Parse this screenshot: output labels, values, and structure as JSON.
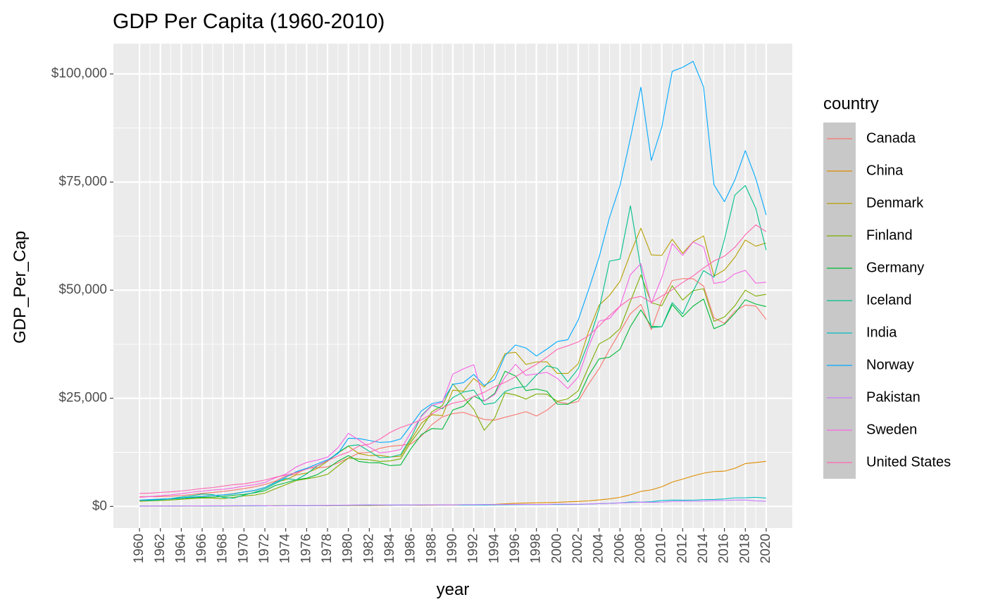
{
  "chart_data": {
    "type": "line",
    "title": "GDP Per Capita (1960-2010)",
    "xlabel": "year",
    "ylabel": "GDP_Per_Cap",
    "xlim": [
      1957.5,
      2022.5
    ],
    "ylim": [
      -5000,
      107000
    ],
    "x_ticks": [
      1960,
      1962,
      1964,
      1966,
      1968,
      1970,
      1972,
      1974,
      1976,
      1978,
      1980,
      1982,
      1984,
      1986,
      1988,
      1990,
      1992,
      1994,
      1996,
      1998,
      2000,
      2002,
      2004,
      2006,
      2008,
      2010,
      2012,
      2014,
      2016,
      2018,
      2020
    ],
    "y_ticks": [
      0,
      25000,
      50000,
      75000,
      100000
    ],
    "y_tick_labels": [
      "$0",
      "$25,000",
      "$50,000",
      "$75,000",
      "$100,000"
    ],
    "grid": true,
    "legend_title": "country",
    "legend_position": "right",
    "x": [
      1960,
      1961,
      1962,
      1963,
      1964,
      1965,
      1966,
      1967,
      1968,
      1969,
      1970,
      1971,
      1972,
      1973,
      1974,
      1975,
      1976,
      1977,
      1978,
      1979,
      1980,
      1981,
      1982,
      1983,
      1984,
      1985,
      1986,
      1987,
      1988,
      1989,
      1990,
      1991,
      1992,
      1993,
      1994,
      1995,
      1996,
      1997,
      1998,
      1999,
      2000,
      2001,
      2002,
      2003,
      2004,
      2005,
      2006,
      2007,
      2008,
      2009,
      2010,
      2011,
      2012,
      2013,
      2014,
      2015,
      2016,
      2017,
      2018,
      2019,
      2020
    ],
    "series": [
      {
        "name": "Canada",
        "color": "#F8766D",
        "values": [
          2260,
          2270,
          2270,
          2370,
          2530,
          2750,
          3030,
          3210,
          3460,
          3760,
          4120,
          4520,
          5080,
          5840,
          7000,
          7530,
          8820,
          8930,
          9150,
          10060,
          11170,
          12340,
          12480,
          13430,
          13890,
          14120,
          14460,
          16300,
          18940,
          20720,
          21440,
          21760,
          20920,
          20120,
          19940,
          20610,
          21230,
          21900,
          20900,
          22240,
          24190,
          23740,
          24240,
          28300,
          31830,
          36270,
          40390,
          44540,
          46710,
          40880,
          47560,
          52220,
          52670,
          52640,
          50960,
          43600,
          42320,
          45130,
          46550,
          46330,
          43260
        ]
      },
      {
        "name": "China",
        "color": "#DE8C00",
        "values": [
          90,
          75,
          70,
          74,
          85,
          98,
          104,
          97,
          91,
          100,
          113,
          118,
          132,
          157,
          160,
          178,
          165,
          185,
          156,
          183,
          195,
          197,
          203,
          225,
          250,
          294,
          281,
          252,
          284,
          311,
          317,
          333,
          366,
          377,
          473,
          610,
          709,
          782,
          829,
          873,
          959,
          1053,
          1149,
          1289,
          1509,
          1753,
          2099,
          2694,
          3468,
          3832,
          4550,
          5618,
          6317,
          7051,
          7679,
          8066,
          8148,
          8817,
          9905,
          10144,
          10409
        ]
      },
      {
        "name": "Denmark",
        "color": "#B79F00",
        "values": [
          1400,
          1540,
          1680,
          1700,
          1940,
          2160,
          2340,
          2530,
          2640,
          2940,
          3340,
          3660,
          4370,
          5650,
          6140,
          7290,
          7710,
          8780,
          10440,
          12330,
          13910,
          12230,
          11750,
          11820,
          11420,
          11600,
          15480,
          19260,
          21200,
          20980,
          26890,
          26630,
          29600,
          27600,
          30520,
          35350,
          35650,
          32830,
          33400,
          33440,
          30740,
          30750,
          32970,
          40460,
          46510,
          48800,
          52030,
          58490,
          64320,
          58160,
          58040,
          61750,
          58510,
          61190,
          62550,
          53250,
          54660,
          57610,
          61590,
          60170,
          60910
        ]
      },
      {
        "name": "Finland",
        "color": "#7CAE00",
        "values": [
          1180,
          1300,
          1380,
          1470,
          1650,
          1830,
          1950,
          1930,
          1790,
          2120,
          2440,
          2610,
          3080,
          4070,
          5020,
          5970,
          6380,
          6780,
          7410,
          9330,
          11190,
          10950,
          10780,
          10390,
          10520,
          11010,
          14940,
          18080,
          21910,
          23310,
          28360,
          25290,
          22450,
          17620,
          20420,
          26250,
          25760,
          24820,
          25990,
          25940,
          24300,
          24870,
          26720,
          32240,
          37560,
          38900,
          41110,
          47400,
          53530,
          47110,
          46400,
          51020,
          47710,
          49880,
          50330,
          42800,
          43800,
          46410,
          49990,
          48630,
          49040
        ]
      },
      {
        "name": "Germany",
        "color": "#00BA38",
        "values": [
          1390,
          1520,
          1630,
          1700,
          1860,
          2000,
          2100,
          2150,
          2300,
          2570,
          2780,
          3140,
          3640,
          4830,
          5460,
          6170,
          6520,
          7320,
          8770,
          10450,
          11750,
          10400,
          10110,
          10070,
          9430,
          9600,
          13400,
          16630,
          18010,
          17870,
          22310,
          23130,
          25480,
          24340,
          26110,
          31250,
          30170,
          26780,
          27140,
          26640,
          23640,
          23610,
          25080,
          30270,
          34100,
          34500,
          36320,
          41590,
          45430,
          41650,
          41530,
          46640,
          43860,
          46300,
          47960,
          41100,
          42100,
          44650,
          47790,
          46790,
          46210
        ]
      },
      {
        "name": "Iceland",
        "color": "#00C08B",
        "values": [
          1430,
          1370,
          1520,
          1810,
          2180,
          2460,
          2840,
          2720,
          2090,
          1900,
          2610,
          3250,
          4050,
          5300,
          6470,
          6130,
          7500,
          9340,
          10540,
          12460,
          14000,
          14240,
          12750,
          11280,
          11400,
          11990,
          15970,
          21000,
          23420,
          22570,
          25180,
          26430,
          26900,
          23560,
          23940,
          26560,
          27430,
          27720,
          30360,
          32490,
          31910,
          28810,
          31840,
          38050,
          45550,
          56720,
          57170,
          69500,
          55080,
          41330,
          41550,
          47120,
          44510,
          49780,
          54520,
          53000,
          61700,
          72000,
          74200,
          68900,
          59260
        ]
      },
      {
        "name": "India",
        "color": "#00BFC4",
        "values": [
          82,
          85,
          89,
          101,
          116,
          119,
          90,
          96,
          99,
          107,
          112,
          118,
          123,
          143,
          163,
          158,
          161,
          186,
          206,
          223,
          267,
          271,
          274,
          292,
          277,
          296,
          310,
          340,
          354,
          347,
          368,
          303,
          317,
          301,
          346,
          374,
          400,
          415,
          413,
          441,
          443,
          451,
          470,
          546,
          627,
          714,
          806,
          1028,
          999,
          1101,
          1358,
          1458,
          1444,
          1450,
          1574,
          1606,
          1733,
          1981,
          1997,
          2101,
          1928
        ]
      },
      {
        "name": "Norway",
        "color": "#00A9FF",
        "values": [
          1440,
          1560,
          1680,
          1790,
          1950,
          2150,
          2320,
          2510,
          2660,
          2890,
          3310,
          3700,
          4350,
          5560,
          6750,
          8010,
          8810,
          9820,
          10760,
          12200,
          15770,
          15680,
          15250,
          14800,
          14910,
          15590,
          18770,
          22100,
          23770,
          24280,
          28240,
          28600,
          30520,
          27970,
          29320,
          34880,
          37320,
          36630,
          34790,
          36370,
          38130,
          38540,
          43080,
          50130,
          57600,
          66810,
          74150,
          85140,
          96940,
          79980,
          87690,
          100600,
          101520,
          102910,
          97020,
          74360,
          70460,
          75500,
          82270,
          75830,
          67390
        ]
      },
      {
        "name": "Pakistan",
        "color": "#C77CFF",
        "values": [
          82,
          90,
          92,
          97,
          107,
          117,
          125,
          137,
          144,
          152,
          170,
          177,
          150,
          108,
          141,
          172,
          196,
          219,
          238,
          262,
          294,
          337,
          357,
          334,
          346,
          340,
          334,
          335,
          358,
          356,
          361,
          391,
          410,
          425,
          421,
          465,
          471,
          462,
          448,
          440,
          534,
          512,
          492,
          560,
          640,
          700,
          806,
          880,
          975,
          951,
          988,
          1165,
          1196,
          1208,
          1251,
          1356,
          1369,
          1465,
          1482,
          1285,
          1194
        ]
      },
      {
        "name": "Sweden",
        "color": "#F564E3",
        "values": [
          2110,
          2270,
          2480,
          2670,
          2950,
          3280,
          3530,
          3780,
          3970,
          4270,
          4700,
          5000,
          5550,
          6590,
          7480,
          9120,
          10170,
          10700,
          11390,
          13570,
          16900,
          15350,
          13720,
          12380,
          12660,
          13150,
          17170,
          20820,
          23350,
          24070,
          30590,
          31790,
          32760,
          24290,
          25860,
          29910,
          32860,
          30310,
          30630,
          31000,
          29620,
          27250,
          29900,
          36960,
          42820,
          43440,
          46260,
          53590,
          56150,
          46950,
          52870,
          60750,
          58040,
          61130,
          60020,
          51550,
          51970,
          53790,
          54590,
          51610,
          51850
        ]
      },
      {
        "name": "United States",
        "color": "#FF64B0",
        "values": [
          3010,
          3070,
          3240,
          3380,
          3570,
          3830,
          4150,
          4340,
          4700,
          5030,
          5230,
          5610,
          6090,
          6730,
          7240,
          7820,
          8610,
          9450,
          10560,
          11670,
          12550,
          13950,
          14400,
          15540,
          17120,
          18240,
          19070,
          20040,
          21420,
          22860,
          23890,
          24340,
          25420,
          26390,
          27690,
          28690,
          29970,
          31460,
          32850,
          34510,
          36330,
          37130,
          38020,
          39490,
          41720,
          44110,
          46300,
          48050,
          48570,
          47190,
          48650,
          50070,
          51780,
          53290,
          55120,
          56760,
          57870,
          59910,
          62820,
          65100,
          63530
        ]
      }
    ]
  }
}
